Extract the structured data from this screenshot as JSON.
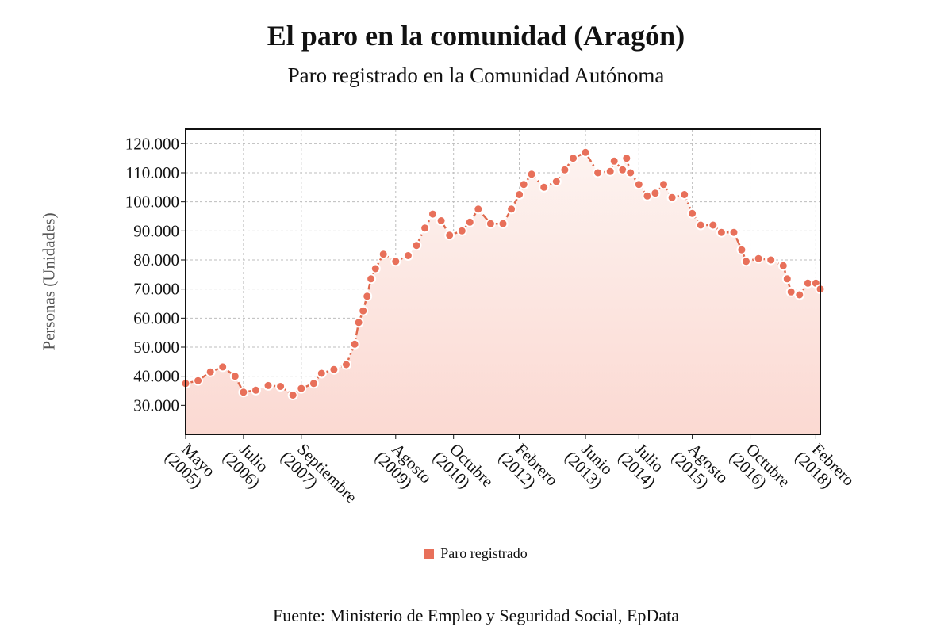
{
  "chart_data": {
    "type": "line",
    "title": "El paro en la comunidad (Aragón)",
    "subtitle": "Paro registrado en la Comunidad Autónoma",
    "ylabel": "Personas (Unidades)",
    "xlabel": "",
    "ylim": [
      20000,
      125000
    ],
    "yticks": [
      30000,
      40000,
      50000,
      60000,
      70000,
      80000,
      90000,
      100000,
      110000,
      120000
    ],
    "ytick_labels": [
      "30.000",
      "40.000",
      "50.000",
      "60.000",
      "70.000",
      "80.000",
      "90.000",
      "100.000",
      "110.000",
      "120.000"
    ],
    "xlim": [
      2005.33,
      2018.17
    ],
    "xticks": [
      {
        "x": 2005.33,
        "label": [
          "Mayo",
          "(2005)"
        ]
      },
      {
        "x": 2006.5,
        "label": [
          "Julio",
          "(2006)"
        ]
      },
      {
        "x": 2007.67,
        "label": [
          "Septiembre",
          "(2007)"
        ]
      },
      {
        "x": 2009.58,
        "label": [
          "Agosto",
          "(2009)"
        ]
      },
      {
        "x": 2010.75,
        "label": [
          "Octubre",
          "(2010)"
        ]
      },
      {
        "x": 2012.08,
        "label": [
          "Febrero",
          "(2012)"
        ]
      },
      {
        "x": 2013.42,
        "label": [
          "Junio",
          "(2013)"
        ]
      },
      {
        "x": 2014.5,
        "label": [
          "Julio",
          "(2014)"
        ]
      },
      {
        "x": 2015.58,
        "label": [
          "Agosto",
          "(2015)"
        ]
      },
      {
        "x": 2016.75,
        "label": [
          "Octubre",
          "(2016)"
        ]
      },
      {
        "x": 2018.08,
        "label": [
          "Febrero",
          "(2018)"
        ]
      }
    ],
    "grid": true,
    "legend_position": "bottom-center",
    "colors": {
      "line": "#e06a4e",
      "marker": "#e8705a",
      "fill_top": "#fdf3f0",
      "fill_bottom": "#fbd9d2"
    },
    "series": [
      {
        "name": "Paro registrado",
        "points": [
          [
            2005.33,
            37500
          ],
          [
            2005.58,
            38500
          ],
          [
            2005.83,
            41500
          ],
          [
            2006.08,
            43200
          ],
          [
            2006.33,
            40000
          ],
          [
            2006.5,
            34500
          ],
          [
            2006.75,
            35200
          ],
          [
            2007.0,
            36800
          ],
          [
            2007.25,
            36500
          ],
          [
            2007.5,
            33500
          ],
          [
            2007.67,
            35800
          ],
          [
            2007.92,
            37500
          ],
          [
            2008.08,
            41000
          ],
          [
            2008.33,
            42300
          ],
          [
            2008.58,
            44000
          ],
          [
            2008.75,
            51000
          ],
          [
            2008.83,
            58500
          ],
          [
            2008.92,
            62500
          ],
          [
            2009.0,
            67500
          ],
          [
            2009.08,
            73500
          ],
          [
            2009.17,
            77000
          ],
          [
            2009.33,
            82000
          ],
          [
            2009.58,
            79500
          ],
          [
            2009.83,
            81500
          ],
          [
            2010.0,
            85000
          ],
          [
            2010.17,
            91000
          ],
          [
            2010.33,
            95800
          ],
          [
            2010.5,
            93500
          ],
          [
            2010.67,
            88500
          ],
          [
            2010.92,
            90000
          ],
          [
            2011.08,
            93000
          ],
          [
            2011.25,
            97500
          ],
          [
            2011.5,
            92500
          ],
          [
            2011.75,
            92500
          ],
          [
            2011.92,
            97500
          ],
          [
            2012.08,
            102500
          ],
          [
            2012.17,
            106000
          ],
          [
            2012.33,
            109500
          ],
          [
            2012.58,
            105000
          ],
          [
            2012.83,
            107000
          ],
          [
            2013.0,
            111000
          ],
          [
            2013.17,
            115000
          ],
          [
            2013.42,
            117000
          ],
          [
            2013.67,
            110000
          ],
          [
            2013.92,
            110500
          ],
          [
            2014.0,
            114000
          ],
          [
            2014.17,
            111000
          ],
          [
            2014.25,
            115000
          ],
          [
            2014.33,
            110000
          ],
          [
            2014.5,
            106000
          ],
          [
            2014.67,
            102000
          ],
          [
            2014.83,
            103000
          ],
          [
            2015.0,
            106000
          ],
          [
            2015.17,
            101500
          ],
          [
            2015.42,
            102500
          ],
          [
            2015.58,
            96000
          ],
          [
            2015.75,
            92000
          ],
          [
            2016.0,
            92000
          ],
          [
            2016.17,
            89500
          ],
          [
            2016.42,
            89500
          ],
          [
            2016.58,
            83500
          ],
          [
            2016.67,
            79500
          ],
          [
            2016.92,
            80500
          ],
          [
            2017.17,
            80000
          ],
          [
            2017.42,
            78000
          ],
          [
            2017.5,
            73500
          ],
          [
            2017.58,
            69000
          ],
          [
            2017.75,
            68000
          ],
          [
            2017.92,
            72000
          ],
          [
            2018.08,
            72000
          ],
          [
            2018.17,
            70000
          ]
        ]
      }
    ]
  },
  "legend": {
    "label": "Paro registrado"
  },
  "source": "Fuente: Ministerio de Empleo y Seguridad Social, EpData"
}
